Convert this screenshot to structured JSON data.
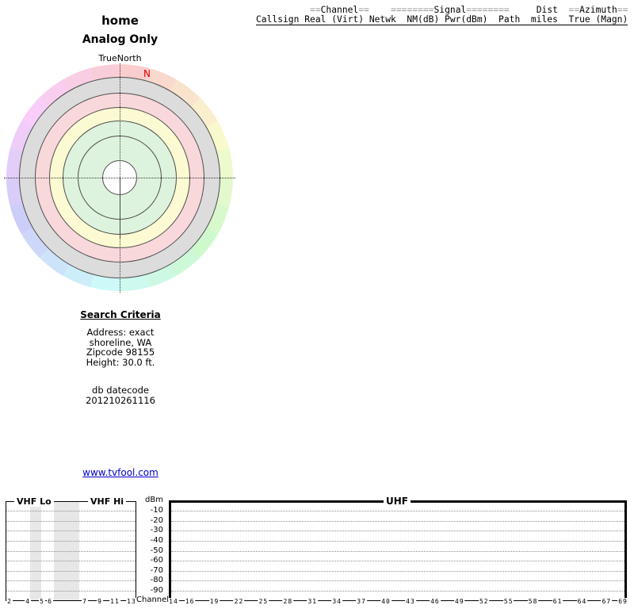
{
  "colors": {
    "ring_gray": "#dcdcdc",
    "ring_pink": "#f9d8db",
    "ring_yellow": "#fbfad2",
    "ring_green": "#def3de",
    "ring_border": "#4d4d4d",
    "north_marker": "#e00000",
    "link": "#0000cc",
    "header_eq": "#999999",
    "band_shade": "#e7e7e7"
  },
  "titles": {
    "location": "home",
    "filter": "Analog Only"
  },
  "radar": {
    "orientation_label": "TrueNorth",
    "magnetic_north_label": "N"
  },
  "report_header": {
    "row1": {
      "pad1": "          ",
      "eq1": "==",
      "channel": "Channel",
      "eq2": "==",
      "pad2": "    ",
      "eq3": "========",
      "signal": "Signal",
      "eq4": "========",
      "pad3": "     ",
      "dist": "Dist",
      "pad4": "  ",
      "eq5": "==",
      "azimuth": "Azimuth",
      "eq6": "=="
    },
    "row2": "Callsign Real (Virt) Netwk  NM(dB) Pwr(dBm)  Path  miles  True (Magn)"
  },
  "search_criteria": {
    "title": "Search Criteria",
    "lines": [
      "Address: exact",
      "shoreline, WA",
      "Zipcode 98155",
      "Height: 30.0 ft."
    ],
    "db_label": "db datecode",
    "db_value": "201210261116"
  },
  "link": {
    "text": "www.tvfool.com"
  },
  "signal_chart": {
    "band_labels": {
      "vhf_lo": "VHF Lo",
      "vhf_hi": "VHF Hi",
      "uhf": "UHF"
    },
    "y_unit": "dBm",
    "x_unit": "Channel",
    "dbm_ticks": [
      "-10",
      "-20",
      "-30",
      "-40",
      "-50",
      "-60",
      "-70",
      "-80",
      "-90"
    ],
    "vhf_channels": [
      "2",
      "4",
      "5",
      "6",
      "7",
      "9",
      "11",
      "13"
    ],
    "uhf_channels": [
      "14",
      "16",
      "19",
      "22",
      "25",
      "28",
      "31",
      "34",
      "37",
      "40",
      "43",
      "46",
      "49",
      "52",
      "55",
      "58",
      "61",
      "64",
      "67",
      "69"
    ]
  },
  "chart_data": [
    {
      "type": "polar",
      "title": "home — Analog Only",
      "orientation_label": "TrueNorth",
      "magnetic_north_marker": "N",
      "magnetic_north_azimuth_deg": 15.5,
      "ring_zones_outer_to_inner": [
        "gray",
        "pink",
        "yellow",
        "green",
        "green"
      ],
      "compass_ring": "pastel hue wheel: red at north rotating clockwise through yellow, green, cyan, blue, magenta",
      "stations": []
    },
    {
      "type": "bar",
      "title": "Signal power by TV channel (empty — no analog stations plotted)",
      "ylabel": "dBm",
      "ylim": [
        -95,
        -5
      ],
      "yticks": [
        -10,
        -20,
        -30,
        -40,
        -50,
        -60,
        -70,
        -80,
        -90
      ],
      "xlabel": "Channel",
      "grid": "dotted horizontal line at each 10 dBm step",
      "sections": [
        {
          "label": "VHF Lo",
          "channels": [
            2,
            4,
            5,
            6
          ]
        },
        {
          "label": "VHF Hi",
          "channels": [
            7,
            9,
            11,
            13
          ]
        },
        {
          "label": "UHF",
          "channels": [
            14,
            16,
            19,
            22,
            25,
            28,
            31,
            34,
            37,
            40,
            43,
            46,
            49,
            52,
            55,
            58,
            61,
            64,
            67,
            69
          ]
        }
      ],
      "shaded_gaps": [
        "between ch 4 and ch 5",
        "between ch 6 and ch 7"
      ],
      "values": []
    }
  ]
}
